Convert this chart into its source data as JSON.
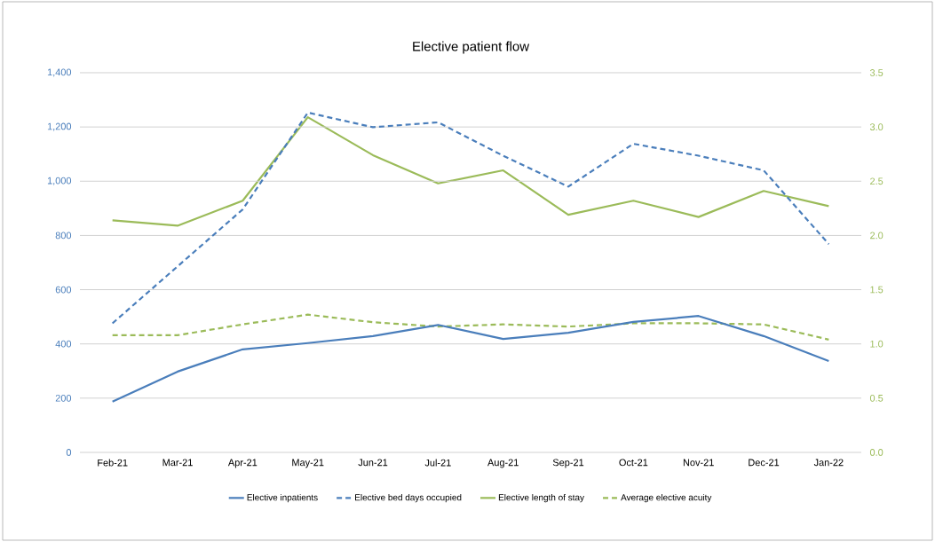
{
  "chart_data": {
    "type": "line",
    "title": "Elective patient flow",
    "categories": [
      "Feb-21",
      "Mar-21",
      "Apr-21",
      "May-21",
      "Jun-21",
      "Jul-21",
      "Aug-21",
      "Sep-21",
      "Oct-21",
      "Nov-21",
      "Dec-21",
      "Jan-22"
    ],
    "series": [
      {
        "name": "Elective inpatients",
        "color": "#4a7ebb",
        "line_style": "solid",
        "values": [
          187,
          298,
          380,
          403,
          429,
          470,
          418,
          441,
          481,
          503,
          429,
          337
        ]
      },
      {
        "name": "Elective bed days occupied",
        "color": "#4a7ebb",
        "line_style": "dashed",
        "values": [
          476,
          686,
          896,
          1253,
          1199,
          1217,
          1094,
          980,
          1138,
          1094,
          1040,
          768
        ]
      },
      {
        "name": "Elective length of stay",
        "color": "#9bbb59",
        "line_style": "solid",
        "axis": "y2",
        "values": [
          2.14,
          2.09,
          2.32,
          3.09,
          2.74,
          2.48,
          2.6,
          2.19,
          2.32,
          2.17,
          2.41,
          2.27
        ]
      },
      {
        "name": "Average elective acuity",
        "color": "#9bbb59",
        "line_style": "dashed",
        "axis": "y2",
        "values": [
          1.08,
          1.08,
          1.18,
          1.27,
          1.2,
          1.16,
          1.18,
          1.16,
          1.19,
          1.19,
          1.18,
          1.04
        ]
      }
    ],
    "ylim": [
      0,
      1400
    ],
    "yticks": [
      0,
      {
        "value": 200,
        "label": "200"
      },
      {
        "value": 400,
        "label": "400"
      },
      {
        "value": 600,
        "label": "600"
      },
      {
        "value": 800,
        "label": "800"
      },
      {
        "value": 1000,
        "label": "1,000"
      },
      {
        "value": 1200,
        "label": "1,200"
      },
      {
        "value": 1400,
        "label": "1,400"
      }
    ],
    "y2lim": [
      0,
      3.5
    ],
    "y2ticks": [
      {
        "value": 0,
        "label": "0.0"
      },
      {
        "value": 0.5,
        "label": "0.5"
      },
      {
        "value": 1,
        "label": "1.0"
      },
      {
        "value": 1.5,
        "label": "1.5"
      },
      {
        "value": 2,
        "label": "2.0"
      },
      {
        "value": 2.5,
        "label": "2.5"
      },
      {
        "value": 3,
        "label": "3.0"
      },
      {
        "value": 3.5,
        "label": "3.5"
      }
    ],
    "grid": "y",
    "legend": "bottom",
    "marker": "none"
  }
}
